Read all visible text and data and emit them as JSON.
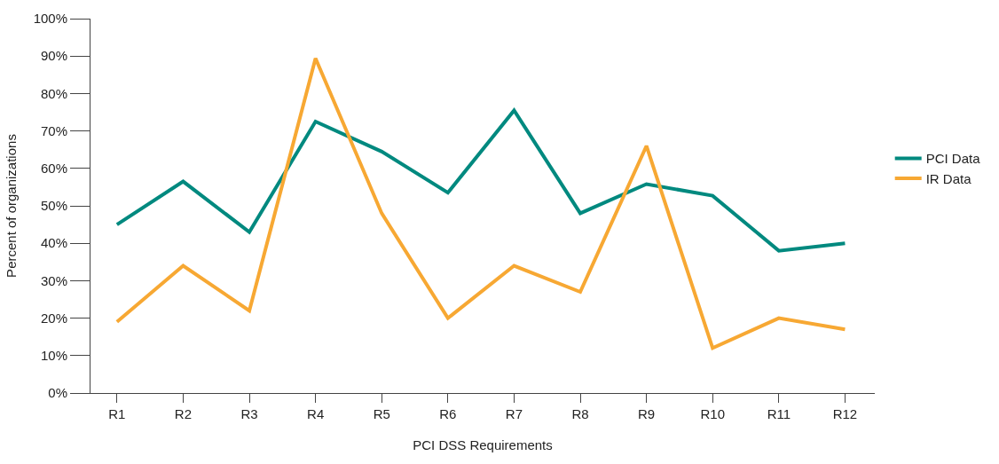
{
  "chart_data": {
    "type": "line",
    "xlabel": "PCI DSS Requirements",
    "ylabel": "Percent of organizations",
    "categories": [
      "R1",
      "R2",
      "R3",
      "R4",
      "R5",
      "R6",
      "R7",
      "R8",
      "R9",
      "R10",
      "R11",
      "R12"
    ],
    "series": [
      {
        "name": "PCI Data",
        "color": "#00897f",
        "values": [
          45,
          56.5,
          43,
          72.5,
          64.5,
          53.5,
          75.5,
          48,
          55.8,
          52.7,
          38,
          40
        ]
      },
      {
        "name": "IR Data",
        "color": "#f7a833",
        "values": [
          19,
          34,
          22,
          89.4,
          48,
          20,
          34,
          27,
          66,
          12,
          20,
          17
        ]
      }
    ],
    "ylim": [
      0,
      100
    ],
    "yticks": [
      {
        "value": 0,
        "label": "0%"
      },
      {
        "value": 10,
        "label": "10%"
      },
      {
        "value": 20,
        "label": "20%"
      },
      {
        "value": 30,
        "label": "30%"
      },
      {
        "value": 40,
        "label": "40%"
      },
      {
        "value": 50,
        "label": "50%"
      },
      {
        "value": 60,
        "label": "60%"
      },
      {
        "value": 70,
        "label": "70%"
      },
      {
        "value": 80,
        "label": "80%"
      },
      {
        "value": 90,
        "label": "90%"
      },
      {
        "value": 100,
        "label": "100%"
      }
    ],
    "legend": "right",
    "marker": "none",
    "line_style": "solid"
  }
}
